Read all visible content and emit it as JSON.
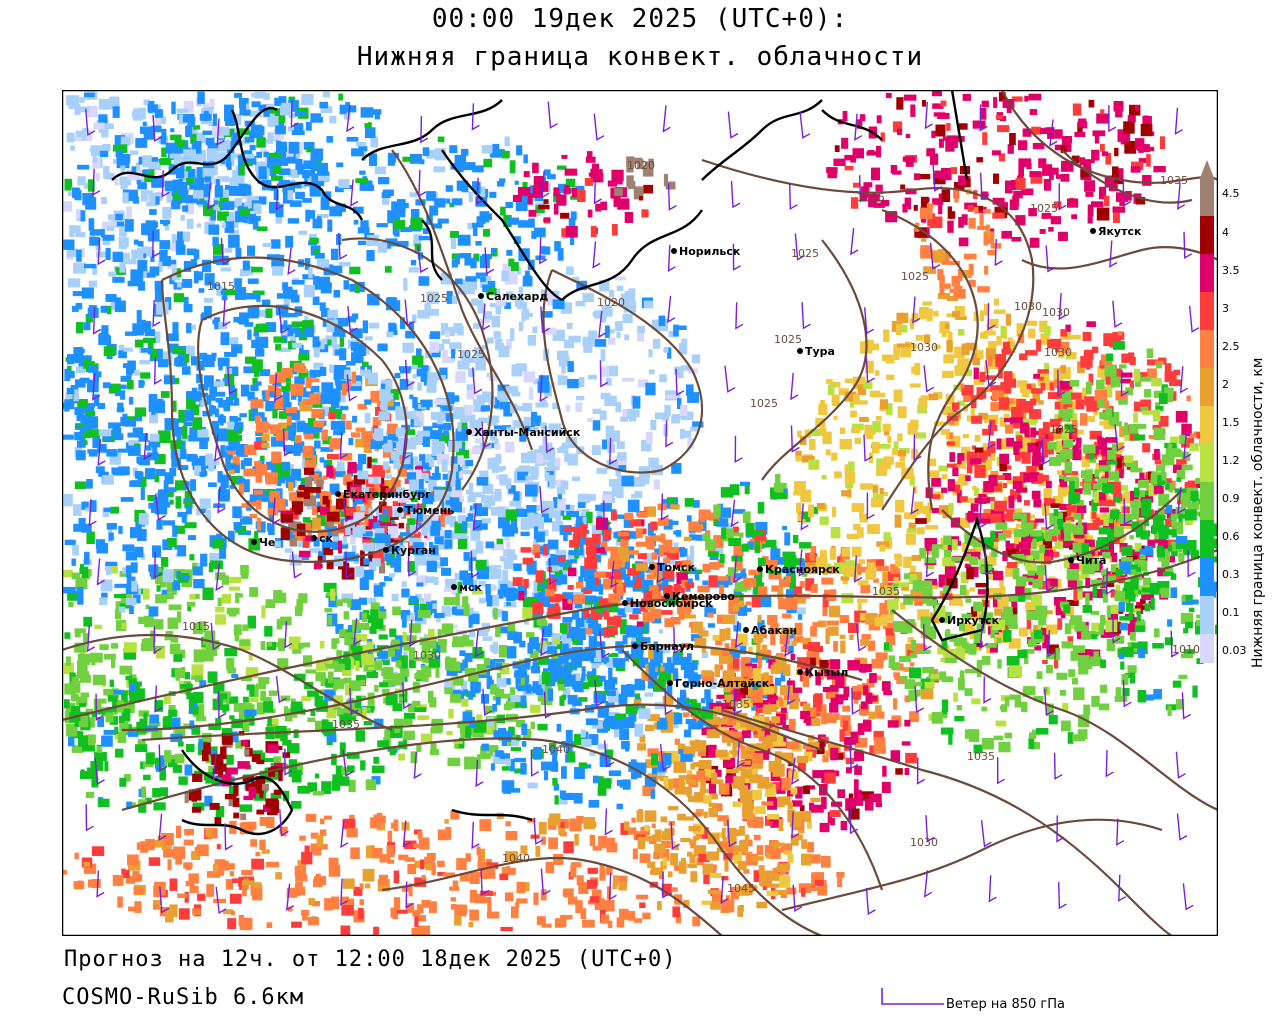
{
  "title": {
    "line1": "00:00 19дек 2025 (UTC+0):",
    "line2": "Нижняя граница конвект. облачности"
  },
  "footer": {
    "forecast": "Прогноз на 12ч. от 12:00 18дек 2025 (UTC+0)",
    "model": "COSMO-RuSib 6.6км"
  },
  "wind_legend": {
    "label": "Ветер на 850 гПа",
    "color": "#7a1fd6"
  },
  "scale": {
    "title": "Нижняя граница конвект. облачности, км",
    "ticks": [
      "4.5",
      "4",
      "3.5",
      "3",
      "2.5",
      "2",
      "1.5",
      "1.2",
      "0.9",
      "0.6",
      "0.3",
      "0.1",
      "0.03"
    ],
    "colors": [
      "#a08070",
      "#a00000",
      "#e0006a",
      "#ff3c3c",
      "#ff8040",
      "#e8a030",
      "#f0c840",
      "#b8e040",
      "#70d040",
      "#10c020",
      "#1e90ff",
      "#a8d0f8",
      "#d8d8ff"
    ]
  },
  "map": {
    "colors": {
      "isobar": "#6b4a3a",
      "border": "#000000",
      "wind": "#7a1fd6",
      "background": "#ffffff"
    },
    "cities": [
      {
        "name": "Норильск"
      },
      {
        "name": "Якутск"
      },
      {
        "name": "Салехард"
      },
      {
        "name": "Тура"
      },
      {
        "name": "Ханты-Мансийск"
      },
      {
        "name": "Екатеринбург"
      },
      {
        "name": "Тюмень"
      },
      {
        "name": "Че"
      },
      {
        "name": "ск"
      },
      {
        "name": "Курган"
      },
      {
        "name": "мск"
      },
      {
        "name": "Новосибирск"
      },
      {
        "name": "Томск"
      },
      {
        "name": "Кемерово"
      },
      {
        "name": "Красноярск"
      },
      {
        "name": "Абакан"
      },
      {
        "name": "Барнаул"
      },
      {
        "name": "Горно-Алтайск"
      },
      {
        "name": "Кызыл"
      },
      {
        "name": "Иркутск"
      },
      {
        "name": "Чита"
      }
    ],
    "isobar_labels": [
      "1020",
      "1025",
      "1025",
      "1025",
      "1030",
      "1030",
      "1015",
      "1025",
      "1020",
      "1025",
      "1025",
      "1025",
      "1030",
      "1025",
      "1015",
      "1035",
      "1030",
      "1035",
      "1040",
      "1035",
      "1035",
      "1040",
      "1030",
      "1045",
      "1010",
      "1030",
      "1035",
      "1025"
    ]
  }
}
